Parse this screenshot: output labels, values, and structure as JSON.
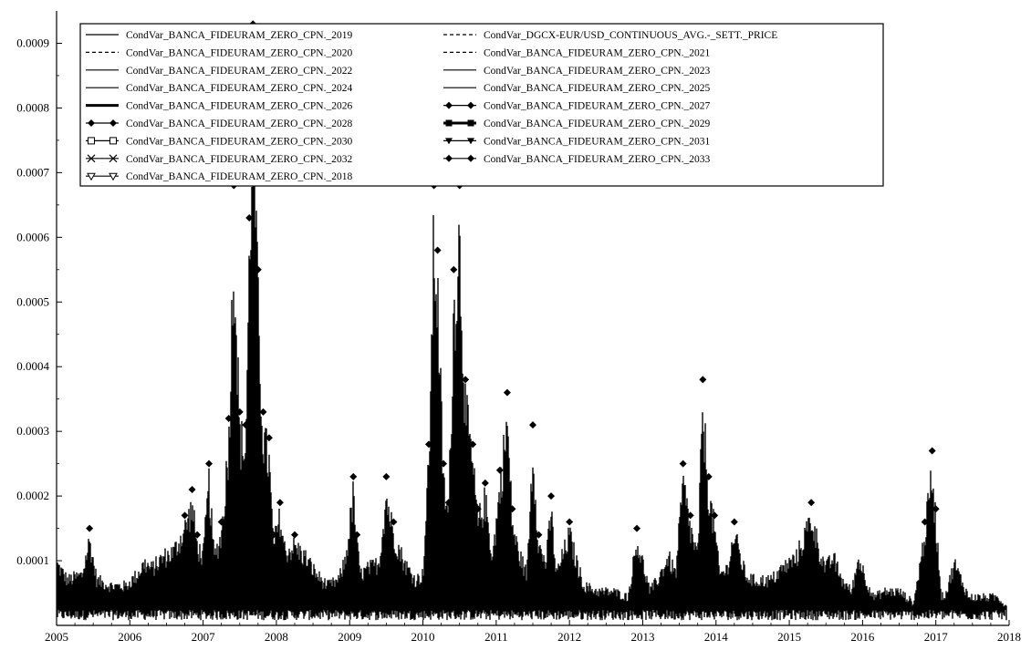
{
  "chart_data": {
    "type": "line",
    "title": "",
    "xlabel": "",
    "ylabel": "",
    "xlim": [
      2005,
      2018
    ],
    "ylim": [
      0,
      0.00095
    ],
    "x_ticks": [
      "2005",
      "2006",
      "2007",
      "2008",
      "2009",
      "2010",
      "2011",
      "2012",
      "2013",
      "2014",
      "2015",
      "2016",
      "2017",
      "2018"
    ],
    "y_ticks": [
      "0.0001",
      "0.0002",
      "0.0003",
      "0.0004",
      "0.0005",
      "0.0006",
      "0.0007",
      "0.0008",
      "0.0009"
    ],
    "legend_position": "top-left",
    "series": [
      {
        "name": "CondVar_BANCA_FIDEURAM_ZERO_CPN._2019",
        "style": "solid",
        "marker": "none"
      },
      {
        "name": "CondVar_DGCX-EUR/USD_CONTINUOUS_AVG.-_SETT._PRICE",
        "style": "dashed",
        "marker": "none"
      },
      {
        "name": "CondVar_BANCA_FIDEURAM_ZERO_CPN._2020",
        "style": "dashed",
        "marker": "none"
      },
      {
        "name": "CondVar_BANCA_FIDEURAM_ZERO_CPN._2021",
        "style": "dashed",
        "marker": "none"
      },
      {
        "name": "CondVar_BANCA_FIDEURAM_ZERO_CPN._2022",
        "style": "solid",
        "marker": "none"
      },
      {
        "name": "CondVar_BANCA_FIDEURAM_ZERO_CPN._2023",
        "style": "solid",
        "marker": "none"
      },
      {
        "name": "CondVar_BANCA_FIDEURAM_ZERO_CPN._2024",
        "style": "solid",
        "marker": "none"
      },
      {
        "name": "CondVar_BANCA_FIDEURAM_ZERO_CPN._2025",
        "style": "solid",
        "marker": "none"
      },
      {
        "name": "CondVar_BANCA_FIDEURAM_ZERO_CPN._2026",
        "style": "thick",
        "marker": "none"
      },
      {
        "name": "CondVar_BANCA_FIDEURAM_ZERO_CPN._2027",
        "style": "solid",
        "marker": "diamond"
      },
      {
        "name": "CondVar_BANCA_FIDEURAM_ZERO_CPN._2028",
        "style": "solid",
        "marker": "diamond"
      },
      {
        "name": "CondVar_BANCA_FIDEURAM_ZERO_CPN._2029",
        "style": "thick",
        "marker": "square-filled"
      },
      {
        "name": "CondVar_BANCA_FIDEURAM_ZERO_CPN._2030",
        "style": "solid",
        "marker": "square-open"
      },
      {
        "name": "CondVar_BANCA_FIDEURAM_ZERO_CPN._2031",
        "style": "solid",
        "marker": "triangle-down-filled"
      },
      {
        "name": "CondVar_BANCA_FIDEURAM_ZERO_CPN._2032",
        "style": "solid",
        "marker": "cross"
      },
      {
        "name": "CondVar_BANCA_FIDEURAM_ZERO_CPN._2033",
        "style": "solid",
        "marker": "diamond"
      },
      {
        "name": "CondVar_BANCA_FIDEURAM_ZERO_CPN._2018",
        "style": "solid",
        "marker": "triangle-down-open"
      }
    ],
    "envelope": {
      "x": [
        2005.0,
        2005.15,
        2005.35,
        2005.45,
        2005.55,
        2005.75,
        2005.95,
        2006.1,
        2006.2,
        2006.3,
        2006.45,
        2006.6,
        2006.75,
        2006.85,
        2006.92,
        2007.0,
        2007.08,
        2007.15,
        2007.25,
        2007.35,
        2007.42,
        2007.5,
        2007.58,
        2007.63,
        2007.68,
        2007.75,
        2007.82,
        2007.9,
        2007.96,
        2008.05,
        2008.12,
        2008.25,
        2008.4,
        2008.55,
        2008.7,
        2008.85,
        2008.95,
        2009.05,
        2009.1,
        2009.15,
        2009.25,
        2009.4,
        2009.5,
        2009.6,
        2009.75,
        2009.9,
        2010.0,
        2010.08,
        2010.15,
        2010.2,
        2010.28,
        2010.35,
        2010.42,
        2010.5,
        2010.58,
        2010.68,
        2010.75,
        2010.85,
        2010.95,
        2011.05,
        2011.15,
        2011.22,
        2011.3,
        2011.42,
        2011.5,
        2011.58,
        2011.68,
        2011.75,
        2011.82,
        2011.9,
        2012.0,
        2012.1,
        2012.2,
        2012.4,
        2012.6,
        2012.8,
        2012.92,
        2013.0,
        2013.1,
        2013.2,
        2013.35,
        2013.45,
        2013.55,
        2013.65,
        2013.75,
        2013.82,
        2013.9,
        2013.98,
        2014.05,
        2014.15,
        2014.25,
        2014.4,
        2014.5,
        2014.6,
        2014.75,
        2014.9,
        2015.1,
        2015.3,
        2015.42,
        2015.5,
        2015.6,
        2015.72,
        2015.85,
        2015.95,
        2016.05,
        2016.15,
        2016.3,
        2016.5,
        2016.7,
        2016.85,
        2016.95,
        2017.0,
        2017.08,
        2017.15,
        2017.25,
        2017.35,
        2017.45,
        2017.55,
        2017.7,
        2017.85,
        2018.0
      ],
      "high": [
        0.00011,
        8e-05,
        9e-05,
        0.00015,
        8e-05,
        7e-05,
        7e-05,
        9e-05,
        0.00011,
        0.0001,
        0.00012,
        0.00013,
        0.00017,
        0.00021,
        0.00014,
        0.00012,
        0.00025,
        0.00012,
        0.00016,
        0.00032,
        0.00068,
        0.00033,
        0.00031,
        0.00063,
        0.00093,
        0.00055,
        0.00033,
        0.00029,
        0.00014,
        0.00019,
        0.00013,
        0.00014,
        0.00012,
        9e-05,
        7e-05,
        8e-05,
        0.00012,
        0.00023,
        0.00014,
        9e-05,
        0.0001,
        0.00011,
        0.00023,
        0.00016,
        0.00011,
        8e-05,
        9e-05,
        0.00028,
        0.00068,
        0.00058,
        0.00025,
        0.00019,
        0.00055,
        0.00068,
        0.00038,
        0.00028,
        0.00018,
        0.00022,
        0.00012,
        0.00024,
        0.00036,
        0.00018,
        0.00013,
        9e-05,
        0.00031,
        0.00014,
        0.00011,
        0.0002,
        9e-05,
        0.00012,
        0.00016,
        0.00011,
        7e-05,
        6e-05,
        6e-05,
        5e-05,
        0.00015,
        0.00011,
        6e-05,
        8e-05,
        0.00012,
        9e-05,
        0.00025,
        0.00017,
        0.00012,
        0.00038,
        0.00023,
        0.00017,
        9e-05,
        0.0001,
        0.00016,
        9e-05,
        8e-05,
        8e-05,
        8e-05,
        0.0001,
        0.00012,
        0.00019,
        0.00013,
        0.0001,
        0.00012,
        8e-05,
        6e-05,
        0.00012,
        8e-05,
        5e-05,
        6e-05,
        6e-05,
        4e-05,
        0.00016,
        0.00027,
        0.00018,
        5e-05,
        6e-05,
        0.00011,
        8e-05,
        5e-05,
        5e-05,
        5e-05,
        5e-05,
        3e-05
      ],
      "low": 2e-05
    }
  }
}
